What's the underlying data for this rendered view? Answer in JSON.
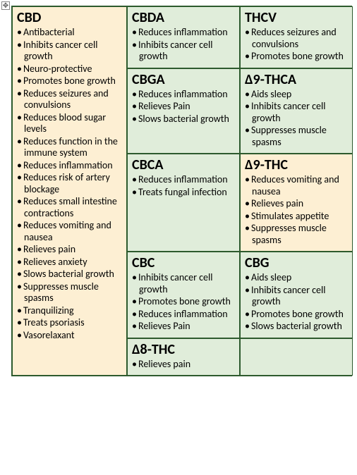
{
  "layout": {
    "grid_columns": 3,
    "border_color": "#2d5a2d",
    "font_family": "Calibri, Arial, sans-serif",
    "title_fontsize": 20,
    "item_fontsize": 14
  },
  "colors": {
    "yellow": "#fdefd3",
    "green": "#e0edda"
  },
  "cells": {
    "cbd": {
      "title": "CBD",
      "items": [
        "Antibacterial",
        "Inhibits cancer cell growth",
        "Neuro-protective",
        "Promotes bone growth",
        "Reduces seizures and convulsions",
        "Reduces blood sugar levels",
        "Reduces function in the immune system",
        "Reduces inflammation",
        "Reduces risk of artery blockage",
        "Reduces small intestine contractions",
        "Reduces vomiting and nausea",
        "Relieves pain",
        "Relieves anxiety",
        "Slows bacterial growth",
        "Suppresses muscle spasms",
        "Tranquilizing",
        "Treats psoriasis",
        "Vasorelaxant"
      ]
    },
    "cbda": {
      "title": "CBDA",
      "items": [
        "Reduces inflammation",
        "Inhibits cancer cell growth"
      ]
    },
    "thcv": {
      "title": "THCV",
      "items": [
        "Reduces seizures and convulsions",
        "Promotes bone growth"
      ]
    },
    "cbga": {
      "title": "CBGA",
      "items": [
        "Reduces inflammation",
        "Relieves Pain",
        "Slows bacterial growth"
      ]
    },
    "d9thca": {
      "title": "Δ9-THCA",
      "items": [
        "Aids sleep",
        "Inhibits cancer cell growth",
        "Suppresses muscle spasms"
      ]
    },
    "cbca": {
      "title": "CBCA",
      "items": [
        "Reduces inflammation",
        "Treats fungal infection"
      ]
    },
    "d9thc": {
      "title": "Δ9-THC",
      "items": [
        "Reduces vomiting and nausea",
        "Relieves pain",
        "Stimulates appetite",
        "Suppresses muscle spasms"
      ]
    },
    "cbc": {
      "title": "CBC",
      "items": [
        "Inhibits cancer cell growth",
        "Promotes bone growth",
        "Reduces inflammation",
        "Relieves Pain"
      ]
    },
    "cbg": {
      "title": "CBG",
      "items": [
        "Aids sleep",
        "Inhibits cancer cell growth",
        "Promotes bone growth",
        "Slows bacterial growth"
      ]
    },
    "d8thc": {
      "title": "Δ8-THC",
      "items": [
        "Relieves pain"
      ]
    }
  }
}
